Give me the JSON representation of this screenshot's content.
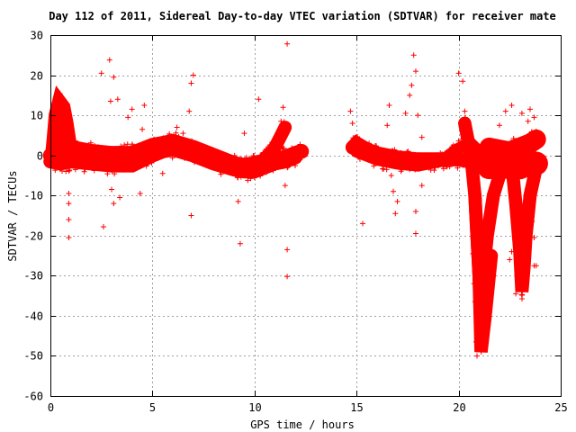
{
  "chart_data": {
    "type": "scatter",
    "title": "Day 112 of 2011, Sidereal Day-to-day VTEC variation (SDTVAR) for receiver mate",
    "xlabel": "GPS time / hours",
    "ylabel": "SDTVAR / TECUs",
    "xlim": [
      0,
      25
    ],
    "ylim": [
      -60,
      30
    ],
    "xticks": [
      0,
      5,
      10,
      15,
      20,
      25
    ],
    "yticks": [
      -60,
      -50,
      -40,
      -30,
      -20,
      -10,
      0,
      10,
      20,
      30
    ],
    "grid": true,
    "marker": "+",
    "color": "#ff0000",
    "dense_bands": [
      {
        "name": "early-spike",
        "x": [
          0.1,
          0.2,
          0.3,
          0.45,
          0.6,
          0.75,
          0.9
        ],
        "y": [
          -1,
          4,
          10,
          13,
          12,
          8,
          3
        ],
        "spread": 1.5
      },
      {
        "name": "main-upper",
        "x": [
          0.0,
          0.5,
          1.0,
          2.0,
          3.0,
          4.0,
          5.0,
          5.5,
          6.0,
          7.0,
          8.0,
          9.0,
          9.5,
          10.0,
          10.5,
          11.0,
          11.5,
          12.0,
          12.3
        ],
        "y": [
          0,
          1,
          2,
          1,
          0.5,
          0.5,
          2.5,
          3,
          3.5,
          2,
          0,
          -2,
          -2.5,
          -2,
          -1.5,
          -1,
          -0.5,
          0.5,
          1
        ],
        "spread": 1.4
      },
      {
        "name": "main-lower",
        "x": [
          0.0,
          0.5,
          1.0,
          2.0,
          3.0,
          4.0,
          5.0,
          5.5,
          6.0,
          7.0,
          8.0,
          9.0,
          9.5,
          10.0,
          10.5,
          11.0,
          11.5,
          12.0
        ],
        "y": [
          -1.5,
          -2,
          -1.5,
          -2,
          -2.5,
          -2.5,
          0,
          1,
          1.5,
          0,
          -2,
          -3.5,
          -4,
          -4,
          -3,
          -2,
          -1.5,
          -0.5
        ],
        "spread": 1.3
      },
      {
        "name": "rise-near-11",
        "x": [
          10.0,
          10.5,
          11.0,
          11.3,
          11.5
        ],
        "y": [
          -3,
          -1,
          2,
          5,
          7
        ],
        "spread": 1.2
      },
      {
        "name": "post-gap",
        "x": [
          14.8,
          15.0,
          15.5,
          16.0,
          17.0,
          18.0,
          19.0,
          20.0,
          20.5,
          21.0,
          22.0,
          23.0,
          23.8
        ],
        "y": [
          2,
          3,
          1.5,
          0.5,
          -0.5,
          -1,
          -1,
          -1,
          -1.5,
          -1,
          -1,
          -1.5,
          -2
        ],
        "spread": 1.3
      },
      {
        "name": "post-gap-lower",
        "x": [
          15.0,
          16.0,
          17.0,
          18.0,
          19.0,
          19.5
        ],
        "y": [
          1,
          -1,
          -2,
          -2.5,
          -1.5,
          -1
        ],
        "spread": 1.1
      },
      {
        "name": "loop-20",
        "x": [
          19.5,
          19.9,
          20.3,
          20.7,
          21.0,
          21.5,
          22.0
        ],
        "y": [
          0,
          1.5,
          2.5,
          2.5,
          1,
          0,
          0.5
        ],
        "spread": 1.0
      },
      {
        "name": "dip-21",
        "x": [
          20.3,
          20.6,
          20.8,
          20.9,
          21.0,
          21.1,
          21.2,
          21.4,
          21.7,
          22.0
        ],
        "y": [
          8,
          0,
          -10,
          -20,
          -30,
          -40,
          -30,
          -20,
          -10,
          -5
        ],
        "spread": 1.2
      },
      {
        "name": "dip-21-b",
        "x": [
          20.8,
          21.0,
          21.1,
          21.3,
          21.6
        ],
        "y": [
          -10,
          -30,
          -49,
          -40,
          -25
        ],
        "spread": 1.2
      },
      {
        "name": "dip-23",
        "x": [
          22.6,
          22.8,
          23.0,
          23.1,
          23.2,
          23.3,
          23.5,
          23.8
        ],
        "y": [
          -2,
          -12,
          -24,
          -34,
          -28,
          -20,
          -10,
          -3
        ],
        "spread": 1.2
      },
      {
        "name": "band-22-24",
        "x": [
          21.5,
          22.0,
          22.5,
          23.0,
          23.5,
          23.8
        ],
        "y": [
          -3,
          -2,
          -3,
          -3,
          -2,
          -2
        ],
        "spread": 2.5
      },
      {
        "name": "band-22-24-upper",
        "x": [
          21.5,
          22.5,
          23.5,
          23.8
        ],
        "y": [
          2,
          1,
          3,
          4
        ],
        "spread": 2.0
      }
    ],
    "outliers": [
      {
        "x": 0.1,
        "y": 9.5
      },
      {
        "x": 0.2,
        "y": 5.0
      },
      {
        "x": 0.9,
        "y": -9.5
      },
      {
        "x": 0.9,
        "y": -12.0
      },
      {
        "x": 0.9,
        "y": -16.0
      },
      {
        "x": 0.9,
        "y": -20.5
      },
      {
        "x": 2.5,
        "y": 20.5
      },
      {
        "x": 2.6,
        "y": -17.8
      },
      {
        "x": 2.9,
        "y": 23.8
      },
      {
        "x": 2.95,
        "y": 13.5
      },
      {
        "x": 3.1,
        "y": 19.5
      },
      {
        "x": 3.3,
        "y": 14.0
      },
      {
        "x": 3.0,
        "y": -8.5
      },
      {
        "x": 3.1,
        "y": -12.0
      },
      {
        "x": 3.4,
        "y": -10.5
      },
      {
        "x": 3.8,
        "y": 9.5
      },
      {
        "x": 4.0,
        "y": 11.5
      },
      {
        "x": 4.4,
        "y": -9.5
      },
      {
        "x": 4.6,
        "y": 12.5
      },
      {
        "x": 4.5,
        "y": 6.5
      },
      {
        "x": 5.5,
        "y": -4.5
      },
      {
        "x": 6.2,
        "y": 7.0
      },
      {
        "x": 6.5,
        "y": 5.5
      },
      {
        "x": 6.9,
        "y": 18.0
      },
      {
        "x": 7.0,
        "y": 20.0
      },
      {
        "x": 6.8,
        "y": 11.0
      },
      {
        "x": 6.9,
        "y": -15.0
      },
      {
        "x": 9.2,
        "y": -11.5
      },
      {
        "x": 9.3,
        "y": -22.0
      },
      {
        "x": 9.5,
        "y": 5.5
      },
      {
        "x": 10.2,
        "y": 14.0
      },
      {
        "x": 10.0,
        "y": -5.5
      },
      {
        "x": 11.3,
        "y": 8.5
      },
      {
        "x": 11.4,
        "y": 12.0
      },
      {
        "x": 11.6,
        "y": 27.8
      },
      {
        "x": 11.6,
        "y": -23.5
      },
      {
        "x": 11.6,
        "y": -30.2
      },
      {
        "x": 11.5,
        "y": -7.5
      },
      {
        "x": 14.7,
        "y": 11.0
      },
      {
        "x": 14.8,
        "y": 8.0
      },
      {
        "x": 15.3,
        "y": -17.0
      },
      {
        "x": 16.5,
        "y": 7.5
      },
      {
        "x": 16.6,
        "y": 12.5
      },
      {
        "x": 16.7,
        "y": -5.0
      },
      {
        "x": 16.8,
        "y": -9.0
      },
      {
        "x": 16.9,
        "y": -14.5
      },
      {
        "x": 17.0,
        "y": -11.5
      },
      {
        "x": 17.4,
        "y": 10.5
      },
      {
        "x": 17.6,
        "y": 15.0
      },
      {
        "x": 17.7,
        "y": 17.5
      },
      {
        "x": 17.8,
        "y": 25.0
      },
      {
        "x": 17.9,
        "y": 21.0
      },
      {
        "x": 17.9,
        "y": -14.0
      },
      {
        "x": 17.9,
        "y": -19.5
      },
      {
        "x": 18.0,
        "y": 10.0
      },
      {
        "x": 18.2,
        "y": 4.5
      },
      {
        "x": 18.2,
        "y": -7.5
      },
      {
        "x": 20.0,
        "y": 20.5
      },
      {
        "x": 20.2,
        "y": 18.5
      },
      {
        "x": 20.3,
        "y": 11.0
      },
      {
        "x": 20.5,
        "y": 6.5
      },
      {
        "x": 20.7,
        "y": -24.5
      },
      {
        "x": 20.75,
        "y": -32.0
      },
      {
        "x": 20.8,
        "y": -36.5
      },
      {
        "x": 20.85,
        "y": -46.5
      },
      {
        "x": 20.9,
        "y": -50.0
      },
      {
        "x": 21.1,
        "y": -34.0
      },
      {
        "x": 21.2,
        "y": -28.5
      },
      {
        "x": 21.5,
        "y": -17.5
      },
      {
        "x": 21.7,
        "y": -12.5
      },
      {
        "x": 22.0,
        "y": 7.5
      },
      {
        "x": 22.3,
        "y": 11.0
      },
      {
        "x": 22.6,
        "y": 12.5
      },
      {
        "x": 22.6,
        "y": -24.0
      },
      {
        "x": 22.5,
        "y": -26.0
      },
      {
        "x": 22.8,
        "y": -34.5
      },
      {
        "x": 22.9,
        "y": -15.5
      },
      {
        "x": 23.1,
        "y": 10.5
      },
      {
        "x": 23.4,
        "y": 8.5
      },
      {
        "x": 23.5,
        "y": 11.5
      },
      {
        "x": 23.6,
        "y": -16.5
      },
      {
        "x": 23.7,
        "y": -20.5
      },
      {
        "x": 23.7,
        "y": -27.5
      },
      {
        "x": 23.8,
        "y": -27.5
      },
      {
        "x": 23.7,
        "y": 9.5
      },
      {
        "x": 23.8,
        "y": 6.0
      }
    ]
  }
}
